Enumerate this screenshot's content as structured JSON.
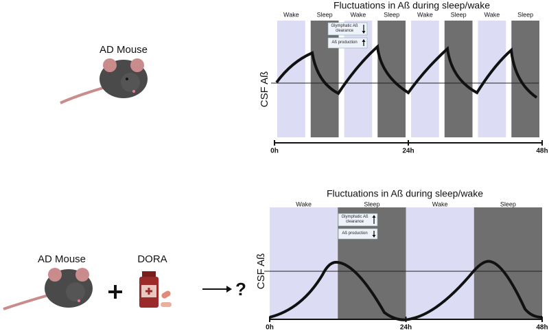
{
  "top": {
    "label": "AD Mouse",
    "chart_title": "Fluctuations in Aß during sleep/wake",
    "y_label": "CSF Aß",
    "phases": [
      "Wake",
      "Sleep",
      "Wake",
      "Sleep",
      "Wake",
      "Sleep",
      "Wake",
      "Sleep"
    ],
    "x_ticks": [
      "0h",
      "24h",
      "48h"
    ],
    "notes": [
      "Glymphatic Aß clearance",
      "Aß production"
    ]
  },
  "bottom": {
    "labels": [
      "AD Mouse",
      "DORA"
    ],
    "result": "?",
    "chart_title": "Fluctuations in Aß during sleep/wake",
    "y_label": "CSF Aß",
    "phases": [
      "Wake",
      "Sleep",
      "Wake",
      "Sleep"
    ],
    "x_ticks": [
      "0h",
      "24h",
      "48h"
    ],
    "notes": [
      "Glymphatic Aß clearance",
      "Aß production"
    ]
  }
}
